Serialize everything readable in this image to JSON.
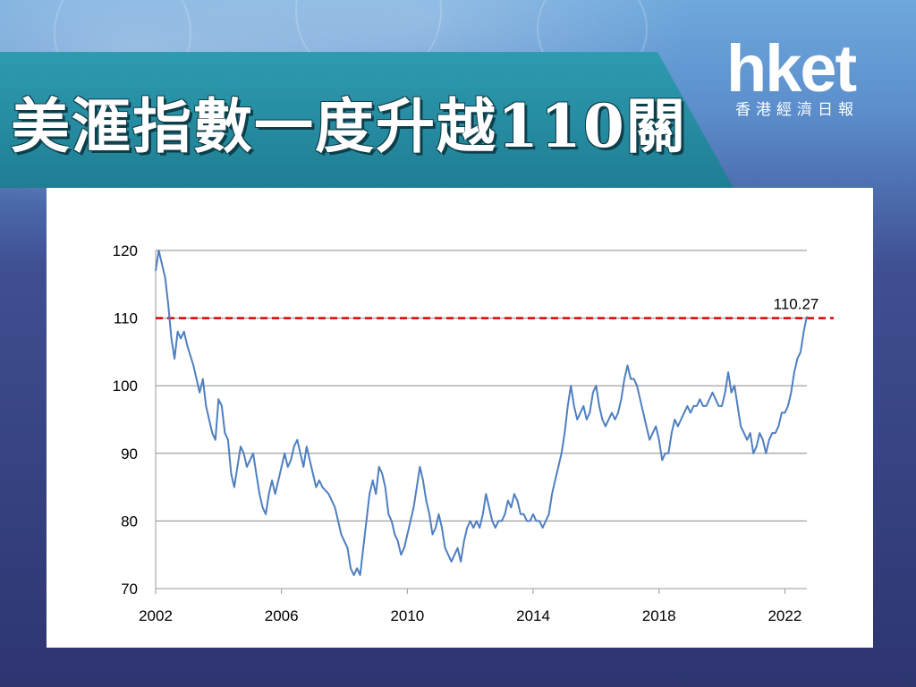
{
  "headline": "美滙指數一度升越110關",
  "brand": {
    "logo": "hket",
    "tagline": "香港經濟日報"
  },
  "chart_data": {
    "type": "line",
    "title": "",
    "xlabel": "",
    "ylabel": "",
    "xlim": [
      2002.0,
      2022.7
    ],
    "ylim": [
      70,
      120
    ],
    "x_ticks": [
      "2002",
      "2006",
      "2010",
      "2014",
      "2018",
      "2022"
    ],
    "y_ticks": [
      "70",
      "80",
      "90",
      "100",
      "110",
      "120"
    ],
    "grid": "horizontal",
    "series": [
      {
        "color": "#4f7fc0",
        "points": [
          [
            2002.0,
            117
          ],
          [
            2002.1,
            120
          ],
          [
            2002.2,
            118
          ],
          [
            2002.3,
            116
          ],
          [
            2002.4,
            112
          ],
          [
            2002.5,
            107
          ],
          [
            2002.6,
            104
          ],
          [
            2002.7,
            108
          ],
          [
            2002.8,
            107
          ],
          [
            2002.9,
            108
          ],
          [
            2003.0,
            106
          ],
          [
            2003.2,
            103
          ],
          [
            2003.4,
            99
          ],
          [
            2003.5,
            101
          ],
          [
            2003.6,
            97
          ],
          [
            2003.8,
            93
          ],
          [
            2003.9,
            92
          ],
          [
            2004.0,
            98
          ],
          [
            2004.1,
            97
          ],
          [
            2004.2,
            93
          ],
          [
            2004.3,
            92
          ],
          [
            2004.4,
            87
          ],
          [
            2004.5,
            85
          ],
          [
            2004.6,
            88
          ],
          [
            2004.7,
            91
          ],
          [
            2004.8,
            90
          ],
          [
            2004.9,
            88
          ],
          [
            2005.0,
            89
          ],
          [
            2005.1,
            90
          ],
          [
            2005.2,
            87
          ],
          [
            2005.3,
            84
          ],
          [
            2005.4,
            82
          ],
          [
            2005.5,
            81
          ],
          [
            2005.6,
            84
          ],
          [
            2005.7,
            86
          ],
          [
            2005.8,
            84
          ],
          [
            2005.9,
            86
          ],
          [
            2006.0,
            88
          ],
          [
            2006.1,
            90
          ],
          [
            2006.2,
            88
          ],
          [
            2006.3,
            89
          ],
          [
            2006.4,
            91
          ],
          [
            2006.5,
            92
          ],
          [
            2006.6,
            90
          ],
          [
            2006.7,
            88
          ],
          [
            2006.8,
            91
          ],
          [
            2006.9,
            89
          ],
          [
            2007.0,
            87
          ],
          [
            2007.1,
            85
          ],
          [
            2007.2,
            86
          ],
          [
            2007.3,
            85
          ],
          [
            2007.5,
            84
          ],
          [
            2007.6,
            83
          ],
          [
            2007.7,
            82
          ],
          [
            2007.8,
            80
          ],
          [
            2007.9,
            78
          ],
          [
            2008.0,
            77
          ],
          [
            2008.1,
            76
          ],
          [
            2008.2,
            73
          ],
          [
            2008.3,
            72
          ],
          [
            2008.4,
            73
          ],
          [
            2008.5,
            72
          ],
          [
            2008.6,
            76
          ],
          [
            2008.7,
            80
          ],
          [
            2008.8,
            84
          ],
          [
            2008.9,
            86
          ],
          [
            2009.0,
            84
          ],
          [
            2009.1,
            88
          ],
          [
            2009.2,
            87
          ],
          [
            2009.3,
            85
          ],
          [
            2009.4,
            81
          ],
          [
            2009.5,
            80
          ],
          [
            2009.6,
            78
          ],
          [
            2009.7,
            77
          ],
          [
            2009.8,
            75
          ],
          [
            2009.9,
            76
          ],
          [
            2010.0,
            78
          ],
          [
            2010.1,
            80
          ],
          [
            2010.2,
            82
          ],
          [
            2010.3,
            85
          ],
          [
            2010.4,
            88
          ],
          [
            2010.5,
            86
          ],
          [
            2010.6,
            83
          ],
          [
            2010.7,
            81
          ],
          [
            2010.8,
            78
          ],
          [
            2010.9,
            79
          ],
          [
            2011.0,
            81
          ],
          [
            2011.1,
            79
          ],
          [
            2011.2,
            76
          ],
          [
            2011.3,
            75
          ],
          [
            2011.4,
            74
          ],
          [
            2011.5,
            75
          ],
          [
            2011.6,
            76
          ],
          [
            2011.7,
            74
          ],
          [
            2011.8,
            77
          ],
          [
            2011.9,
            79
          ],
          [
            2012.0,
            80
          ],
          [
            2012.1,
            79
          ],
          [
            2012.2,
            80
          ],
          [
            2012.3,
            79
          ],
          [
            2012.4,
            81
          ],
          [
            2012.5,
            84
          ],
          [
            2012.6,
            82
          ],
          [
            2012.7,
            80
          ],
          [
            2012.8,
            79
          ],
          [
            2012.9,
            80
          ],
          [
            2013.0,
            80
          ],
          [
            2013.1,
            81
          ],
          [
            2013.2,
            83
          ],
          [
            2013.3,
            82
          ],
          [
            2013.4,
            84
          ],
          [
            2013.5,
            83
          ],
          [
            2013.6,
            81
          ],
          [
            2013.7,
            81
          ],
          [
            2013.8,
            80
          ],
          [
            2013.9,
            80
          ],
          [
            2014.0,
            81
          ],
          [
            2014.1,
            80
          ],
          [
            2014.2,
            80
          ],
          [
            2014.3,
            79
          ],
          [
            2014.4,
            80
          ],
          [
            2014.5,
            81
          ],
          [
            2014.6,
            84
          ],
          [
            2014.7,
            86
          ],
          [
            2014.8,
            88
          ],
          [
            2014.9,
            90
          ],
          [
            2015.0,
            93
          ],
          [
            2015.1,
            97
          ],
          [
            2015.2,
            100
          ],
          [
            2015.3,
            97
          ],
          [
            2015.4,
            95
          ],
          [
            2015.5,
            96
          ],
          [
            2015.6,
            97
          ],
          [
            2015.7,
            95
          ],
          [
            2015.8,
            96
          ],
          [
            2015.9,
            99
          ],
          [
            2016.0,
            100
          ],
          [
            2016.1,
            97
          ],
          [
            2016.2,
            95
          ],
          [
            2016.3,
            94
          ],
          [
            2016.4,
            95
          ],
          [
            2016.5,
            96
          ],
          [
            2016.6,
            95
          ],
          [
            2016.7,
            96
          ],
          [
            2016.8,
            98
          ],
          [
            2016.9,
            101
          ],
          [
            2017.0,
            103
          ],
          [
            2017.1,
            101
          ],
          [
            2017.2,
            101
          ],
          [
            2017.3,
            100
          ],
          [
            2017.4,
            98
          ],
          [
            2017.5,
            96
          ],
          [
            2017.6,
            94
          ],
          [
            2017.7,
            92
          ],
          [
            2017.8,
            93
          ],
          [
            2017.9,
            94
          ],
          [
            2018.0,
            92
          ],
          [
            2018.1,
            89
          ],
          [
            2018.2,
            90
          ],
          [
            2018.3,
            90
          ],
          [
            2018.4,
            93
          ],
          [
            2018.5,
            95
          ],
          [
            2018.6,
            94
          ],
          [
            2018.7,
            95
          ],
          [
            2018.8,
            96
          ],
          [
            2018.9,
            97
          ],
          [
            2019.0,
            96
          ],
          [
            2019.1,
            97
          ],
          [
            2019.2,
            97
          ],
          [
            2019.3,
            98
          ],
          [
            2019.4,
            97
          ],
          [
            2019.5,
            97
          ],
          [
            2019.6,
            98
          ],
          [
            2019.7,
            99
          ],
          [
            2019.8,
            98
          ],
          [
            2019.9,
            97
          ],
          [
            2020.0,
            97
          ],
          [
            2020.1,
            99
          ],
          [
            2020.2,
            102
          ],
          [
            2020.3,
            99
          ],
          [
            2020.4,
            100
          ],
          [
            2020.5,
            97
          ],
          [
            2020.6,
            94
          ],
          [
            2020.7,
            93
          ],
          [
            2020.8,
            92
          ],
          [
            2020.9,
            93
          ],
          [
            2021.0,
            90
          ],
          [
            2021.1,
            91
          ],
          [
            2021.2,
            93
          ],
          [
            2021.3,
            92
          ],
          [
            2021.4,
            90
          ],
          [
            2021.5,
            92
          ],
          [
            2021.6,
            93
          ],
          [
            2021.7,
            93
          ],
          [
            2021.8,
            94
          ],
          [
            2021.9,
            96
          ],
          [
            2022.0,
            96
          ],
          [
            2022.1,
            97
          ],
          [
            2022.2,
            99
          ],
          [
            2022.3,
            102
          ],
          [
            2022.4,
            104
          ],
          [
            2022.5,
            105
          ],
          [
            2022.6,
            108
          ],
          [
            2022.7,
            110.27
          ]
        ]
      }
    ],
    "reference_line": {
      "y": 110,
      "color": "#e00000",
      "style": "dashed"
    },
    "annotation": {
      "text": "110.27",
      "x": 2022.7,
      "y": 110.27
    }
  }
}
